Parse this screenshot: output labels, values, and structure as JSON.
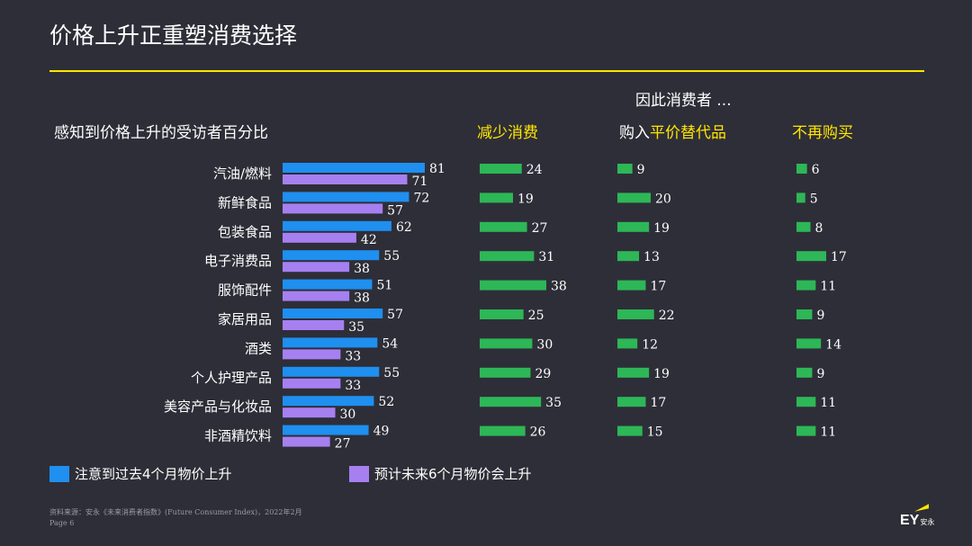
{
  "title": "价格上升正重塑消费选择",
  "subhead": "因此消费者 ...",
  "left_header": "感知到价格上升的受访者百分比",
  "col_headers": {
    "reduce": "减少消费",
    "buy_prefix": "购入",
    "buy_highlight": "平价替代品",
    "stop": "不再购买"
  },
  "legend": {
    "past": "注意到过去4个月物价上升",
    "future": "预计未来6个月物价会上升"
  },
  "footer": {
    "source": "资料来源：安永《未来消费者指数》(Future Consumer Index)，2022年2月",
    "page": "Page 6"
  },
  "logo": {
    "main": "EY",
    "sub": "安永"
  },
  "colors": {
    "background": "#2e2e38",
    "accent": "#ffe600",
    "past": "#1f8ff0",
    "future": "#a680f0",
    "green": "#2db757"
  },
  "chart_data": [
    {
      "type": "bar",
      "orientation": "horizontal",
      "categories": [
        "汽油/燃料",
        "新鲜食品",
        "包装食品",
        "电子消费品",
        "服饰配件",
        "家居用品",
        "酒类",
        "个人护理产品",
        "美容产品与化妆品",
        "非酒精饮料"
      ],
      "series": [
        {
          "name": "注意到过去4个月物价上升",
          "values": [
            81,
            72,
            62,
            55,
            51,
            57,
            54,
            55,
            52,
            49
          ]
        },
        {
          "name": "预计未来6个月物价会上升",
          "values": [
            71,
            57,
            42,
            38,
            38,
            35,
            33,
            33,
            30,
            27
          ]
        }
      ]
    },
    {
      "type": "bar",
      "orientation": "horizontal",
      "title": "减少消费",
      "categories": [
        "汽油/燃料",
        "新鲜食品",
        "包装食品",
        "电子消费品",
        "服饰配件",
        "家居用品",
        "酒类",
        "个人护理产品",
        "美容产品与化妆品",
        "非酒精饮料"
      ],
      "values": [
        24,
        19,
        27,
        31,
        38,
        25,
        30,
        29,
        35,
        26
      ]
    },
    {
      "type": "bar",
      "orientation": "horizontal",
      "title": "购入平价替代品",
      "categories": [
        "汽油/燃料",
        "新鲜食品",
        "包装食品",
        "电子消费品",
        "服饰配件",
        "家居用品",
        "酒类",
        "个人护理产品",
        "美容产品与化妆品",
        "非酒精饮料"
      ],
      "values": [
        9,
        20,
        19,
        13,
        17,
        22,
        12,
        19,
        17,
        15
      ]
    },
    {
      "type": "bar",
      "orientation": "horizontal",
      "title": "不再购买",
      "categories": [
        "汽油/燃料",
        "新鲜食品",
        "包装食品",
        "电子消费品",
        "服饰配件",
        "家居用品",
        "酒类",
        "个人护理产品",
        "美容产品与化妆品",
        "非酒精饮料"
      ],
      "values": [
        6,
        5,
        8,
        17,
        11,
        9,
        14,
        9,
        11,
        11
      ]
    }
  ]
}
